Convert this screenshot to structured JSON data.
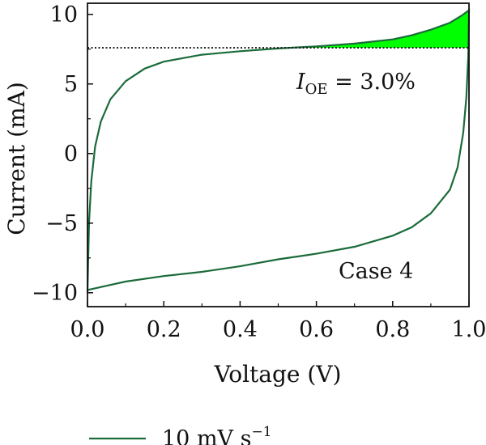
{
  "chart_data": {
    "type": "line",
    "xlabel": "Voltage (V)",
    "ylabel": "Current (mA)",
    "xlim": [
      0.0,
      1.0
    ],
    "ylim": [
      -11,
      10.8
    ],
    "xticks": [
      "0.0",
      "0.2",
      "0.4",
      "0.6",
      "0.8",
      "1.0"
    ],
    "yticks": [
      "10",
      "5",
      "0",
      "−5",
      "−10"
    ],
    "xtick_values": [
      0.0,
      0.2,
      0.4,
      0.6,
      0.8,
      1.0
    ],
    "ytick_values": [
      10,
      5,
      0,
      -5,
      -10
    ],
    "grid": false,
    "legend_position": "bottom",
    "line_color": "#1b6b3a",
    "fill_color": "#00ff00",
    "threshold": 7.6,
    "annotation_ioe": {
      "symbol": "I",
      "subscript": "OE",
      "text": " = 3.0%"
    },
    "annotation_case": "Case 4",
    "legend": {
      "text": "10 mV s",
      "superscript": "−1"
    },
    "series": [
      {
        "name": "10 mV s⁻¹",
        "upper": [
          [
            0.0,
            -10.0
          ],
          [
            0.004,
            -5.0
          ],
          [
            0.01,
            -2.0
          ],
          [
            0.02,
            0.5
          ],
          [
            0.035,
            2.3
          ],
          [
            0.06,
            3.9
          ],
          [
            0.1,
            5.2
          ],
          [
            0.15,
            6.1
          ],
          [
            0.2,
            6.6
          ],
          [
            0.3,
            7.1
          ],
          [
            0.4,
            7.35
          ],
          [
            0.5,
            7.55
          ],
          [
            0.6,
            7.7
          ],
          [
            0.7,
            7.9
          ],
          [
            0.8,
            8.2
          ],
          [
            0.85,
            8.5
          ],
          [
            0.9,
            8.9
          ],
          [
            0.95,
            9.4
          ],
          [
            0.98,
            9.9
          ],
          [
            1.0,
            10.3
          ]
        ],
        "lower": [
          [
            1.0,
            10.3
          ],
          [
            0.998,
            7.0
          ],
          [
            0.993,
            4.0
          ],
          [
            0.985,
            1.5
          ],
          [
            0.97,
            -1.0
          ],
          [
            0.95,
            -2.6
          ],
          [
            0.9,
            -4.3
          ],
          [
            0.85,
            -5.3
          ],
          [
            0.8,
            -5.9
          ],
          [
            0.7,
            -6.7
          ],
          [
            0.6,
            -7.2
          ],
          [
            0.5,
            -7.6
          ],
          [
            0.4,
            -8.1
          ],
          [
            0.3,
            -8.5
          ],
          [
            0.2,
            -8.8
          ],
          [
            0.1,
            -9.2
          ],
          [
            0.05,
            -9.5
          ],
          [
            0.0,
            -9.8
          ]
        ]
      }
    ]
  }
}
